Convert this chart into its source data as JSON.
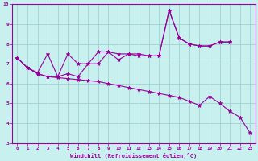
{
  "xlabel": "Windchill (Refroidissement éolien,°C)",
  "background_color": "#c8f0ee",
  "line_color": "#990099",
  "grid_color": "#99cccc",
  "xmin": 0,
  "xmax": 23,
  "ymin": 3,
  "ymax": 10,
  "line1_y": [
    7.3,
    6.8,
    6.55,
    7.5,
    6.35,
    7.5,
    7.0,
    7.0,
    7.6,
    7.6,
    7.5,
    7.5,
    7.4,
    7.4,
    7.4,
    9.7,
    8.3,
    8.0,
    7.9,
    7.9,
    8.1,
    8.1,
    null,
    null
  ],
  "line2_y": [
    7.3,
    6.8,
    6.5,
    6.35,
    6.35,
    6.5,
    6.35,
    7.0,
    7.0,
    7.6,
    7.2,
    7.5,
    7.5,
    7.4,
    7.4,
    9.7,
    8.3,
    8.0,
    7.9,
    7.9,
    8.1,
    8.1,
    null,
    null
  ],
  "line3_y": [
    7.3,
    6.8,
    6.5,
    6.35,
    6.3,
    6.25,
    6.2,
    6.15,
    6.1,
    6.0,
    5.9,
    5.8,
    5.7,
    5.6,
    5.5,
    5.4,
    5.3,
    5.1,
    4.9,
    5.35,
    5.0,
    4.6,
    4.3,
    3.5
  ]
}
